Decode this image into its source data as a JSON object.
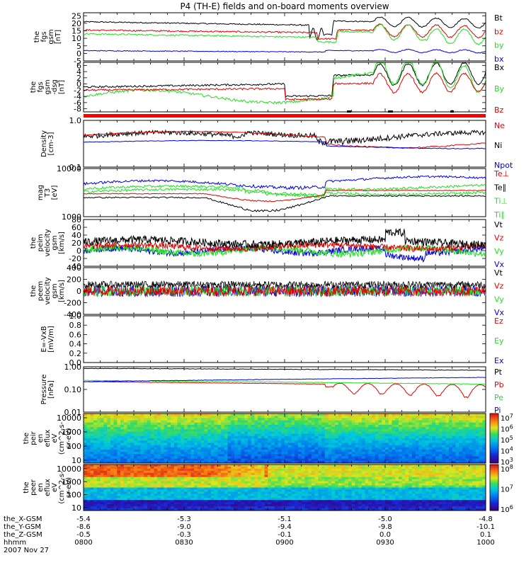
{
  "title": "P4 (TH-E) fields and on-board moments overview",
  "colors": {
    "black": "#000000",
    "red": "#e00000",
    "green": "#20e020",
    "blue": "#0000e0",
    "bar_red": "#ff0000"
  },
  "chart_data": [
    {
      "type": "line",
      "id": "fgs",
      "ylabel": [
        "the",
        "fgs",
        "gsm",
        "[nT]"
      ],
      "ylim": [
        -5,
        27
      ],
      "yticks": [
        "25",
        "20",
        "15",
        "10",
        "5",
        "0",
        "-5"
      ],
      "yvalues": [
        25,
        20,
        15,
        10,
        5,
        0,
        -5
      ],
      "series": [
        {
          "name": "Bt",
          "color": "black"
        },
        {
          "name": "bz",
          "color": "red"
        },
        {
          "name": "by",
          "color": "green"
        },
        {
          "name": "bx",
          "color": "blue"
        }
      ]
    },
    {
      "type": "line",
      "id": "fgs2",
      "ylabel": [
        "the",
        "fgs",
        "gsm",
        "-dsg",
        "[nT]"
      ],
      "ylim": [
        -9,
        7
      ],
      "yticks": [
        "6",
        "4",
        "2",
        "0",
        "-2",
        "-4",
        "-6",
        "-8"
      ],
      "yvalues": [
        6,
        4,
        2,
        0,
        -2,
        -4,
        -6,
        -8
      ],
      "series": [
        {
          "name": "Bx",
          "color": "black"
        },
        {
          "name": "By",
          "color": "green"
        },
        {
          "name": "Bz",
          "color": "red"
        }
      ]
    },
    {
      "type": "line",
      "id": "density",
      "log": true,
      "ylabel": [
        "Density",
        "[cm-3]"
      ],
      "ylim": [
        0.1,
        1.0
      ],
      "yticks": [
        "1.0",
        "0.1"
      ],
      "yvalues": [
        1.0,
        0.1
      ],
      "series": [
        {
          "name": "Ne",
          "color": "red"
        },
        {
          "name": "Ni",
          "color": "black"
        },
        {
          "name": "Npot",
          "color": "blue"
        }
      ]
    },
    {
      "type": "line",
      "id": "temp",
      "log": true,
      "ylabel": [
        "mag",
        "T3",
        "[eV]"
      ],
      "ylim": [
        1000,
        10000
      ],
      "yticks": [
        "10000",
        "1000"
      ],
      "yvalues": [
        10000,
        1000
      ],
      "series": [
        {
          "name": "Te⊥",
          "color": "red"
        },
        {
          "name": "Te∥",
          "color": "black"
        },
        {
          "name": "Ti⊥",
          "color": "green"
        },
        {
          "name": "Ti∥",
          "color": "green"
        }
      ]
    },
    {
      "type": "line",
      "id": "peim",
      "ylabel": [
        "the",
        "peim",
        "velocity",
        "gsm",
        "[km/s]"
      ],
      "ylim": [
        -40,
        80
      ],
      "yticks": [
        "80",
        "60",
        "40",
        "20",
        "0",
        "-20",
        "-40"
      ],
      "yvalues": [
        80,
        60,
        40,
        20,
        0,
        -20,
        -40
      ],
      "series": [
        {
          "name": "Vt",
          "color": "black"
        },
        {
          "name": "Vz",
          "color": "red"
        },
        {
          "name": "Vy",
          "color": "green"
        },
        {
          "name": "Vx",
          "color": "blue"
        }
      ]
    },
    {
      "type": "line",
      "id": "peem",
      "ylabel": [
        "the",
        "peem",
        "velocity",
        "gsm",
        "[km/s]"
      ],
      "ylim": [
        -400,
        400
      ],
      "yticks": [
        "400",
        "200",
        "0",
        "-200",
        "-400"
      ],
      "yvalues": [
        400,
        200,
        0,
        -200,
        -400
      ],
      "series": [
        {
          "name": "Vt",
          "color": "black"
        },
        {
          "name": "Vz",
          "color": "red"
        },
        {
          "name": "Vy",
          "color": "green"
        },
        {
          "name": "Vx",
          "color": "blue"
        }
      ]
    },
    {
      "type": "line",
      "id": "efield",
      "ylabel": [
        "E=-VxB",
        "[mV/m]"
      ],
      "ylim": [
        0,
        1
      ],
      "yticks": [
        "1.0",
        "0.8",
        "0.6",
        "0.4",
        "0.2",
        "0.0"
      ],
      "yvalues": [
        1.0,
        0.8,
        0.6,
        0.4,
        0.2,
        0.0
      ],
      "series": [
        {
          "name": "Ez",
          "color": "red"
        },
        {
          "name": "Ey",
          "color": "green"
        },
        {
          "name": "Ex",
          "color": "blue"
        }
      ]
    },
    {
      "type": "line",
      "id": "pressure",
      "log": true,
      "ylabel": [
        "Pressure",
        "[nPa]"
      ],
      "ylim": [
        0.01,
        1.0
      ],
      "yticks": [
        "1.00",
        "0.10",
        "0.01"
      ],
      "yvalues": [
        1.0,
        0.1,
        0.01
      ],
      "series": [
        {
          "name": "Pt",
          "color": "black"
        },
        {
          "name": "Pb",
          "color": "red"
        },
        {
          "name": "Pe",
          "color": "green"
        },
        {
          "name": "Pi",
          "color": "blue"
        }
      ]
    },
    {
      "type": "heatmap",
      "id": "peir",
      "ylabel": [
        "the",
        "peir",
        "en",
        "eflux",
        "eV",
        "(cm^2-s-",
        "sr-eV)"
      ],
      "yticks": [
        "10000",
        "1000",
        "100",
        "10"
      ],
      "colorbar_ticks": [
        "10^7",
        "10^6",
        "10^5",
        "10^4",
        "10^3"
      ]
    },
    {
      "type": "heatmap",
      "id": "peer",
      "ylabel": [
        "the",
        "peer",
        "en",
        "eflux",
        "eV",
        "(cm^2-s-",
        "sr-eV)"
      ],
      "yticks": [
        "10000",
        "1000",
        "100",
        "10"
      ],
      "colorbar_ticks": [
        "10^8",
        "10^7",
        "10^6"
      ]
    }
  ],
  "xaxis": {
    "rows": [
      {
        "label": "the_X-GSM",
        "values": [
          "-5.4",
          "-5.3",
          "-5.1",
          "-5.0",
          "-4.8"
        ]
      },
      {
        "label": "the_Y-GSM",
        "values": [
          "-8.6",
          "-9.0",
          "-9.4",
          "-9.8",
          "-10.1"
        ]
      },
      {
        "label": "the_Z-GSM",
        "values": [
          "-0.5",
          "-0.3",
          "-0.1",
          "0.0",
          "0.1"
        ]
      },
      {
        "label": "hhmm",
        "values": [
          "0800",
          "0830",
          "0900",
          "0930",
          "1000"
        ]
      }
    ],
    "date": "2007 Nov 27"
  }
}
